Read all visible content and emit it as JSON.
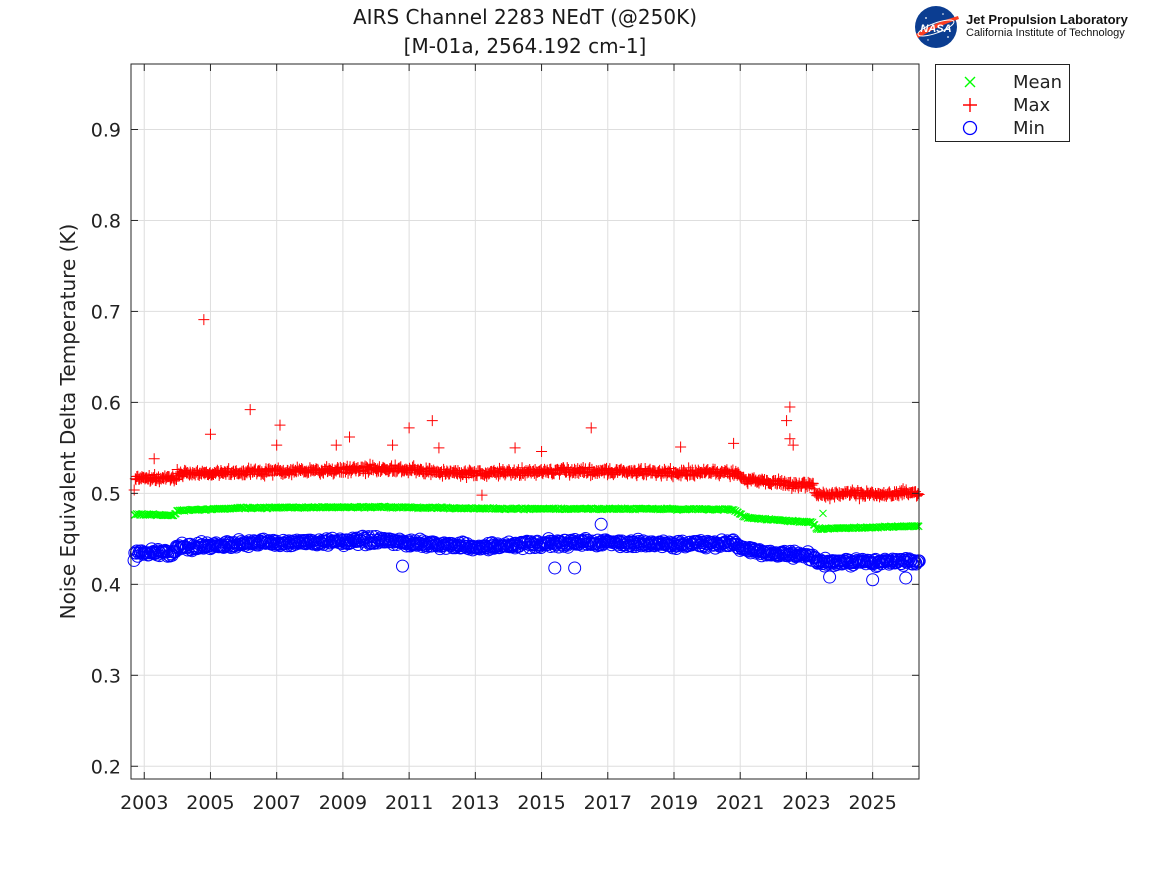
{
  "header": {
    "title_line1": "AIRS Channel 2283 NEdT (@250K)",
    "title_line2": "[M-01a, 2564.192 cm-1]"
  },
  "logo": {
    "badge_text": "NASA",
    "line1": "Jet Propulsion Laboratory",
    "line2": "California Institute of Technology"
  },
  "legend": {
    "items": [
      {
        "label": "Mean",
        "marker": "x-icon",
        "color": "#00ff00"
      },
      {
        "label": "Max",
        "marker": "plus-icon",
        "color": "#ff0000"
      },
      {
        "label": "Min",
        "marker": "circle-icon",
        "color": "#0000ff"
      }
    ]
  },
  "chart_data": {
    "type": "scatter",
    "title": "AIRS Channel 2283 NEdT (@250K) [M-01a, 2564.192 cm-1]",
    "xlabel": "",
    "ylabel": "Noise Equivalent Delta Temperature (K)",
    "xlim": [
      2002.6,
      2026.4
    ],
    "ylim": [
      0.186,
      0.972
    ],
    "x_ticks": [
      2003,
      2005,
      2007,
      2009,
      2011,
      2013,
      2015,
      2017,
      2019,
      2021,
      2023,
      2025
    ],
    "y_ticks": [
      0.2,
      0.3,
      0.4,
      0.5,
      0.6,
      0.7,
      0.8,
      0.9
    ],
    "x_tick_labels": [
      "2003",
      "2005",
      "2007",
      "2009",
      "2011",
      "2013",
      "2015",
      "2017",
      "2019",
      "2021",
      "2023",
      "2025"
    ],
    "y_tick_labels": [
      "0.2",
      "0.3",
      "0.4",
      "0.5",
      "0.6",
      "0.7",
      "0.8",
      "0.9"
    ],
    "grid": true,
    "legend_position": "outside-top-right",
    "series": [
      {
        "name": "Mean",
        "marker": "x",
        "color": "#00ff00",
        "trend": [
          [
            2002.7,
            0.477
          ],
          [
            2003.9,
            0.476
          ],
          [
            2004.0,
            0.481
          ],
          [
            2006.0,
            0.484
          ],
          [
            2010.0,
            0.485
          ],
          [
            2014.0,
            0.483
          ],
          [
            2018.0,
            0.483
          ],
          [
            2020.8,
            0.482
          ],
          [
            2021.2,
            0.473
          ],
          [
            2023.2,
            0.468
          ],
          [
            2023.3,
            0.461
          ],
          [
            2026.4,
            0.464
          ]
        ],
        "outliers": [
          [
            2023.5,
            0.478
          ]
        ]
      },
      {
        "name": "Max",
        "marker": "+",
        "color": "#ff0000",
        "trend": [
          [
            2002.7,
            0.516
          ],
          [
            2003.9,
            0.516
          ],
          [
            2004.0,
            0.522
          ],
          [
            2007.0,
            0.524
          ],
          [
            2010.0,
            0.527
          ],
          [
            2013.0,
            0.522
          ],
          [
            2016.0,
            0.525
          ],
          [
            2019.0,
            0.523
          ],
          [
            2020.8,
            0.523
          ],
          [
            2021.2,
            0.515
          ],
          [
            2023.2,
            0.508
          ],
          [
            2023.3,
            0.499
          ],
          [
            2026.4,
            0.5
          ]
        ],
        "outliers": [
          [
            2004.8,
            0.691
          ],
          [
            2005.0,
            0.565
          ],
          [
            2006.2,
            0.592
          ],
          [
            2007.1,
            0.575
          ],
          [
            2007.0,
            0.553
          ],
          [
            2008.8,
            0.553
          ],
          [
            2009.2,
            0.562
          ],
          [
            2010.5,
            0.553
          ],
          [
            2011.0,
            0.572
          ],
          [
            2011.7,
            0.58
          ],
          [
            2011.9,
            0.55
          ],
          [
            2013.2,
            0.498
          ],
          [
            2014.2,
            0.55
          ],
          [
            2015.0,
            0.546
          ],
          [
            2016.5,
            0.572
          ],
          [
            2019.2,
            0.551
          ],
          [
            2020.8,
            0.555
          ],
          [
            2022.4,
            0.58
          ],
          [
            2022.5,
            0.595
          ],
          [
            2022.5,
            0.56
          ],
          [
            2022.6,
            0.553
          ],
          [
            2003.3,
            0.538
          ]
        ]
      },
      {
        "name": "Min",
        "marker": "o",
        "color": "#0000ff",
        "trend": [
          [
            2002.7,
            0.435
          ],
          [
            2003.9,
            0.435
          ],
          [
            2004.0,
            0.441
          ],
          [
            2007.0,
            0.446
          ],
          [
            2010.0,
            0.448
          ],
          [
            2013.0,
            0.441
          ],
          [
            2016.0,
            0.446
          ],
          [
            2019.0,
            0.444
          ],
          [
            2020.8,
            0.445
          ],
          [
            2021.2,
            0.437
          ],
          [
            2023.2,
            0.43
          ],
          [
            2023.3,
            0.424
          ],
          [
            2026.4,
            0.425
          ]
        ],
        "outliers": [
          [
            2016.8,
            0.466
          ],
          [
            2010.8,
            0.42
          ],
          [
            2015.4,
            0.418
          ],
          [
            2016.0,
            0.418
          ],
          [
            2025.0,
            0.405
          ],
          [
            2026.0,
            0.407
          ],
          [
            2023.7,
            0.408
          ]
        ]
      }
    ]
  }
}
